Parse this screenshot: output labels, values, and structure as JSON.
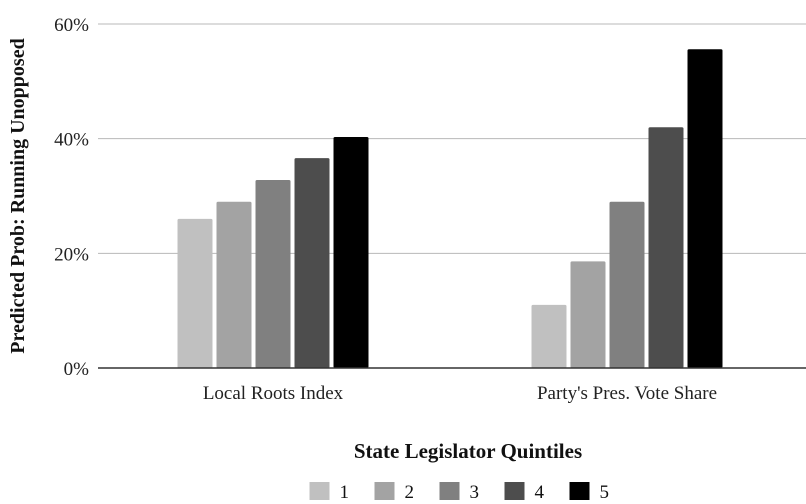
{
  "chart_data": {
    "type": "bar",
    "categories": [
      "Local Roots Index",
      "Party's Pres. Vote Share"
    ],
    "series": [
      {
        "name": "1",
        "values": [
          26,
          11
        ],
        "color": "#c0c0c0"
      },
      {
        "name": "2",
        "values": [
          29,
          18.6
        ],
        "color": "#a3a3a3"
      },
      {
        "name": "3",
        "values": [
          32.8,
          29
        ],
        "color": "#808080"
      },
      {
        "name": "4",
        "values": [
          36.6,
          42
        ],
        "color": "#4d4d4d"
      },
      {
        "name": "5",
        "values": [
          40.3,
          55.6
        ],
        "color": "#000000"
      }
    ],
    "yticks": [
      "0%",
      "20%",
      "40%",
      "60%"
    ],
    "ylim": [
      0,
      60
    ],
    "ylabel": "Predicted Prob: Running Unopposed",
    "legend_title": "State Legislator Quintiles",
    "legend_position": "bottom",
    "grid": true
  }
}
